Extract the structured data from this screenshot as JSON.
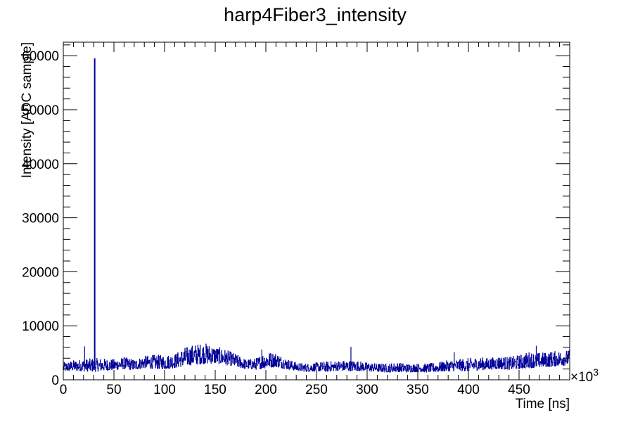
{
  "chart_data": {
    "type": "line",
    "title": "harp4Fiber3_intensity",
    "xlabel": "Time [ns]",
    "ylabel": "Intensity [ADC sample]",
    "x_multiplier_label": "×10",
    "x_multiplier_exponent": "3",
    "xlim": [
      0,
      500
    ],
    "ylim": [
      0,
      62500
    ],
    "x_ticks": [
      0,
      50,
      100,
      150,
      200,
      250,
      300,
      350,
      400,
      450
    ],
    "y_ticks": [
      0,
      10000,
      20000,
      30000,
      40000,
      50000,
      60000
    ],
    "grid": false,
    "legend": "none",
    "series_color": "#000099",
    "envelope": {
      "x": [
        0,
        10,
        20,
        30,
        40,
        50,
        60,
        70,
        80,
        90,
        100,
        110,
        120,
        130,
        140,
        150,
        160,
        170,
        180,
        190,
        200,
        210,
        220,
        230,
        240,
        250,
        260,
        270,
        280,
        290,
        300,
        310,
        320,
        330,
        340,
        350,
        360,
        370,
        380,
        390,
        400,
        410,
        420,
        430,
        440,
        450,
        460,
        470,
        480,
        490,
        500
      ],
      "low": [
        1500,
        1700,
        1600,
        1500,
        1700,
        1800,
        2000,
        1800,
        2200,
        2000,
        2000,
        2200,
        2600,
        2800,
        3000,
        3000,
        2800,
        2400,
        2000,
        1900,
        2200,
        2400,
        2000,
        1700,
        1500,
        1600,
        1500,
        1700,
        1600,
        1700,
        1600,
        1500,
        1400,
        1500,
        1400,
        1500,
        1400,
        1500,
        1600,
        1700,
        1600,
        1800,
        1900,
        2000,
        1900,
        2000,
        2200,
        2300,
        2400,
        2600,
        2800
      ],
      "high": [
        3200,
        3600,
        3800,
        4000,
        3900,
        3800,
        4200,
        3800,
        4400,
        4600,
        4600,
        4800,
        6000,
        6600,
        6800,
        6200,
        5600,
        4800,
        3800,
        4000,
        5200,
        5000,
        4000,
        3200,
        3000,
        3200,
        3400,
        3500,
        3600,
        3500,
        3200,
        3000,
        3000,
        3200,
        3000,
        3000,
        3000,
        3200,
        3600,
        3800,
        4000,
        4200,
        4000,
        4400,
        4200,
        4600,
        5200,
        5000,
        5200,
        5400,
        5500
      ]
    },
    "spikes": [
      {
        "x": 31,
        "y": 59500
      },
      {
        "x": 21,
        "y": 6200
      },
      {
        "x": 196,
        "y": 5600
      },
      {
        "x": 284,
        "y": 6100
      },
      {
        "x": 386,
        "y": 5100
      },
      {
        "x": 467,
        "y": 6300
      }
    ]
  }
}
